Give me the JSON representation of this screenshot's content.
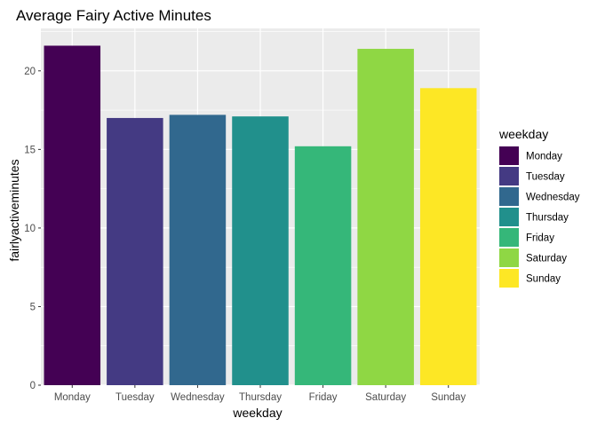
{
  "chart_data": {
    "type": "bar",
    "title": "Average Fairy Active Minutes",
    "xlabel": "weekday",
    "ylabel": "fairlyactiveminutes",
    "categories": [
      "Monday",
      "Tuesday",
      "Wednesday",
      "Thursday",
      "Friday",
      "Saturday",
      "Sunday"
    ],
    "values": [
      21.6,
      17.0,
      17.2,
      17.1,
      15.2,
      21.4,
      18.9
    ],
    "colors": [
      "#440154",
      "#443A83",
      "#31688E",
      "#21908C",
      "#35B779",
      "#8FD744",
      "#FDE725"
    ],
    "ylim": [
      0,
      22.7
    ],
    "yticks": [
      0,
      5,
      10,
      15,
      20
    ],
    "ytick_labels": [
      "0",
      "5",
      "10",
      "15",
      "20"
    ],
    "grid": true,
    "panel_background": "#EBEBEB",
    "legend": {
      "title": "weekday",
      "position": "right",
      "entries": [
        "Monday",
        "Tuesday",
        "Wednesday",
        "Thursday",
        "Friday",
        "Saturday",
        "Sunday"
      ]
    }
  }
}
